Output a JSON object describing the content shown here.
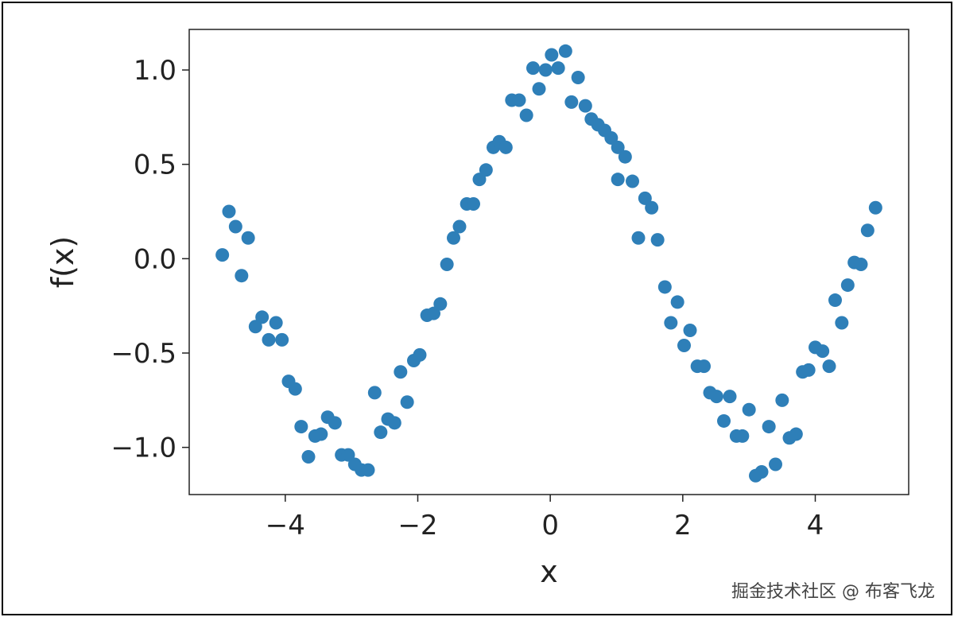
{
  "chart_data": {
    "type": "scatter",
    "title": "",
    "xlabel": "x",
    "ylabel": "f(x)",
    "xlim": [
      -5.45,
      5.41
    ],
    "ylim": [
      -1.25,
      1.215
    ],
    "xticks": [
      -4,
      -2,
      0,
      2,
      4
    ],
    "xtick_labels": [
      "−4",
      "−2",
      "0",
      "2",
      "4"
    ],
    "yticks": [
      -1.0,
      -0.5,
      0.0,
      0.5,
      1.0
    ],
    "ytick_labels": [
      "−1.0",
      "−0.5",
      "0.0",
      "0.5",
      "1.0"
    ],
    "grid": false,
    "color": "#2e7fb8",
    "x": [
      -4.95,
      -4.85,
      -4.75,
      -4.66,
      -4.56,
      -4.45,
      -4.35,
      -4.25,
      -4.14,
      -4.05,
      -3.95,
      -3.85,
      -3.76,
      -3.65,
      -3.55,
      -3.46,
      -3.36,
      -3.25,
      -3.15,
      -3.05,
      -2.95,
      -2.85,
      -2.75,
      -2.65,
      -2.56,
      -2.45,
      -2.35,
      -2.26,
      -2.16,
      -2.06,
      -1.97,
      -1.86,
      -1.76,
      -1.66,
      -1.56,
      -1.46,
      -1.37,
      -1.26,
      -1.16,
      -1.07,
      -0.97,
      -0.86,
      -0.77,
      -0.67,
      -0.58,
      -0.47,
      -0.36,
      -0.26,
      -0.17,
      -0.07,
      0.02,
      0.12,
      0.23,
      0.32,
      0.42,
      0.53,
      0.62,
      0.72,
      0.82,
      0.92,
      1.02,
      1.13,
      1.02,
      1.24,
      1.33,
      1.43,
      1.53,
      1.62,
      1.73,
      1.82,
      1.92,
      2.02,
      2.11,
      2.22,
      2.32,
      2.41,
      2.51,
      2.62,
      2.71,
      2.81,
      2.9,
      3.0,
      3.1,
      3.19,
      3.3,
      3.4,
      3.5,
      3.61,
      3.71,
      3.81,
      3.9,
      4.0,
      4.11,
      4.21,
      4.3,
      4.4,
      4.49,
      4.59,
      4.69,
      4.79,
      4.91
    ],
    "y": [
      0.02,
      0.25,
      0.17,
      -0.09,
      0.11,
      -0.36,
      -0.31,
      -0.43,
      -0.34,
      -0.43,
      -0.65,
      -0.69,
      -0.89,
      -1.05,
      -0.94,
      -0.93,
      -0.84,
      -0.87,
      -1.04,
      -1.04,
      -1.09,
      -1.12,
      -1.12,
      -0.71,
      -0.92,
      -0.85,
      -0.87,
      -0.6,
      -0.76,
      -0.54,
      -0.51,
      -0.3,
      -0.29,
      -0.24,
      -0.03,
      0.11,
      0.17,
      0.29,
      0.29,
      0.42,
      0.47,
      0.59,
      0.62,
      0.59,
      0.84,
      0.84,
      0.76,
      1.01,
      0.9,
      1.0,
      1.08,
      1.01,
      1.1,
      0.83,
      0.96,
      0.81,
      0.74,
      0.71,
      0.68,
      0.64,
      0.59,
      0.54,
      0.42,
      0.41,
      0.11,
      0.32,
      0.27,
      0.1,
      -0.15,
      -0.34,
      -0.23,
      -0.46,
      -0.38,
      -0.57,
      -0.57,
      -0.71,
      -0.73,
      -0.86,
      -0.73,
      -0.94,
      -0.94,
      -0.8,
      -1.15,
      -1.13,
      -0.89,
      -1.09,
      -0.75,
      -0.95,
      -0.93,
      -0.6,
      -0.59,
      -0.47,
      -0.49,
      -0.57,
      -0.22,
      -0.34,
      -0.14,
      -0.02,
      -0.03,
      0.15,
      0.27
    ]
  },
  "watermark": "掘金技术社区 @ 布客飞龙"
}
